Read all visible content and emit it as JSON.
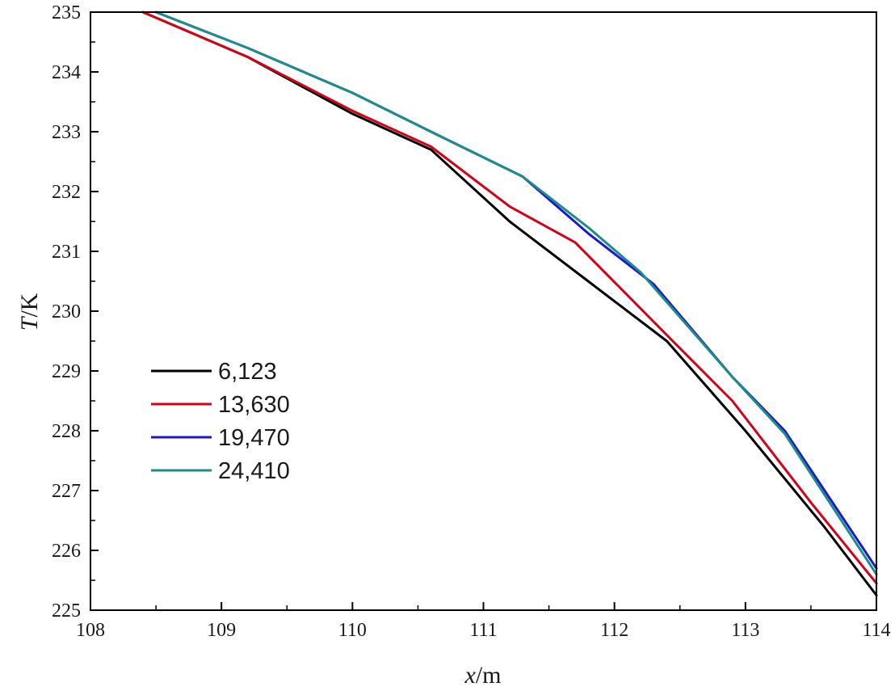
{
  "chart_data": {
    "type": "line",
    "title": "",
    "xlabel": {
      "italic": "x",
      "unit": "/m"
    },
    "ylabel": {
      "italic": "T",
      "unit": "/K"
    },
    "xlim": [
      108,
      114
    ],
    "ylim": [
      225,
      235
    ],
    "xticks": [
      108,
      109,
      110,
      111,
      112,
      113,
      114
    ],
    "yticks": [
      225,
      226,
      227,
      228,
      229,
      230,
      231,
      232,
      233,
      234,
      235
    ],
    "x_minor_step": 0.5,
    "y_minor_step": 0.5,
    "grid": false,
    "legend_position": "middle-left",
    "series": [
      {
        "name": "6,123",
        "color": "#000000",
        "x": [
          108.4,
          109.2,
          110.0,
          110.6,
          111.2,
          111.8,
          112.4,
          113.0,
          113.6,
          114.0
        ],
        "y": [
          235.0,
          234.25,
          233.3,
          232.7,
          231.5,
          230.5,
          229.5,
          228.0,
          226.4,
          225.25
        ]
      },
      {
        "name": "13,630",
        "color": "#d0021b",
        "x": [
          108.4,
          109.2,
          110.0,
          110.6,
          111.2,
          111.7,
          112.4,
          112.9,
          113.5,
          114.0
        ],
        "y": [
          235.0,
          234.25,
          233.35,
          232.75,
          231.75,
          231.15,
          229.6,
          228.5,
          226.8,
          225.45
        ]
      },
      {
        "name": "19,470",
        "color": "#1a1acc",
        "x": [
          108.5,
          109.2,
          110.0,
          110.6,
          111.3,
          111.8,
          112.3,
          112.9,
          113.3,
          114.0
        ],
        "y": [
          235.0,
          234.4,
          233.65,
          233.0,
          232.25,
          231.3,
          230.45,
          228.9,
          228.0,
          225.7
        ]
      },
      {
        "name": "24,410",
        "color": "#1e8c8c",
        "x": [
          108.5,
          109.2,
          110.0,
          110.6,
          111.3,
          111.8,
          112.2,
          112.9,
          113.3,
          114.0
        ],
        "y": [
          235.0,
          234.4,
          233.65,
          233.0,
          232.25,
          231.4,
          230.65,
          228.9,
          227.95,
          225.6
        ]
      }
    ]
  }
}
